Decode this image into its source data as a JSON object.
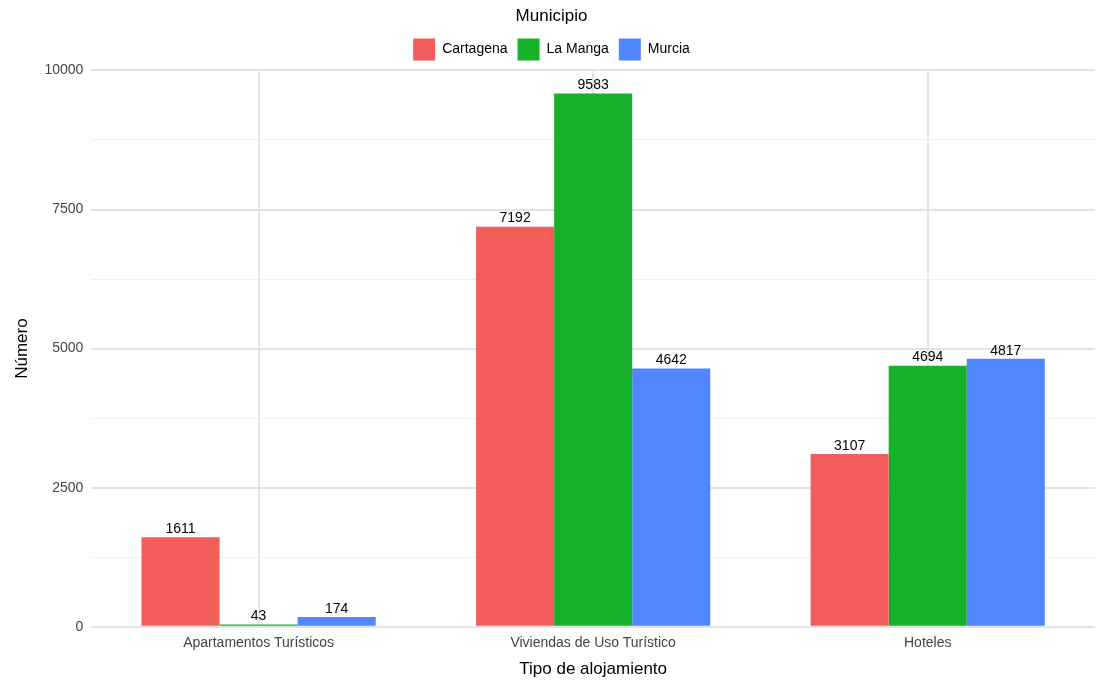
{
  "chart_data": {
    "type": "bar",
    "xlabel": "Tipo de alojamiento",
    "ylabel": "Número",
    "legend_title": "Municipio",
    "legend": "top",
    "categories": [
      "Apartamentos Turísticos",
      "Viviendas de Uso Turístico",
      "Hoteles"
    ],
    "series": [
      {
        "name": "Cartagena",
        "color": "#f35e5a",
        "values": [
          1611,
          7192,
          3107
        ]
      },
      {
        "name": "La Manga",
        "color": "#17b12b",
        "values": [
          43,
          9583,
          4694
        ]
      },
      {
        "name": "Murcia",
        "color": "#5087ff",
        "values": [
          174,
          4642,
          4817
        ]
      }
    ],
    "ylim": [
      0,
      10000
    ],
    "yticks": [
      0,
      {
        "value": 1250,
        "label": null
      },
      2500,
      {
        "value": 3750,
        "label": null
      },
      5000,
      {
        "value": 6250,
        "label": null
      },
      7500,
      {
        "value": 8750,
        "label": null
      },
      10000
    ],
    "grid": true,
    "data_labels": true
  }
}
